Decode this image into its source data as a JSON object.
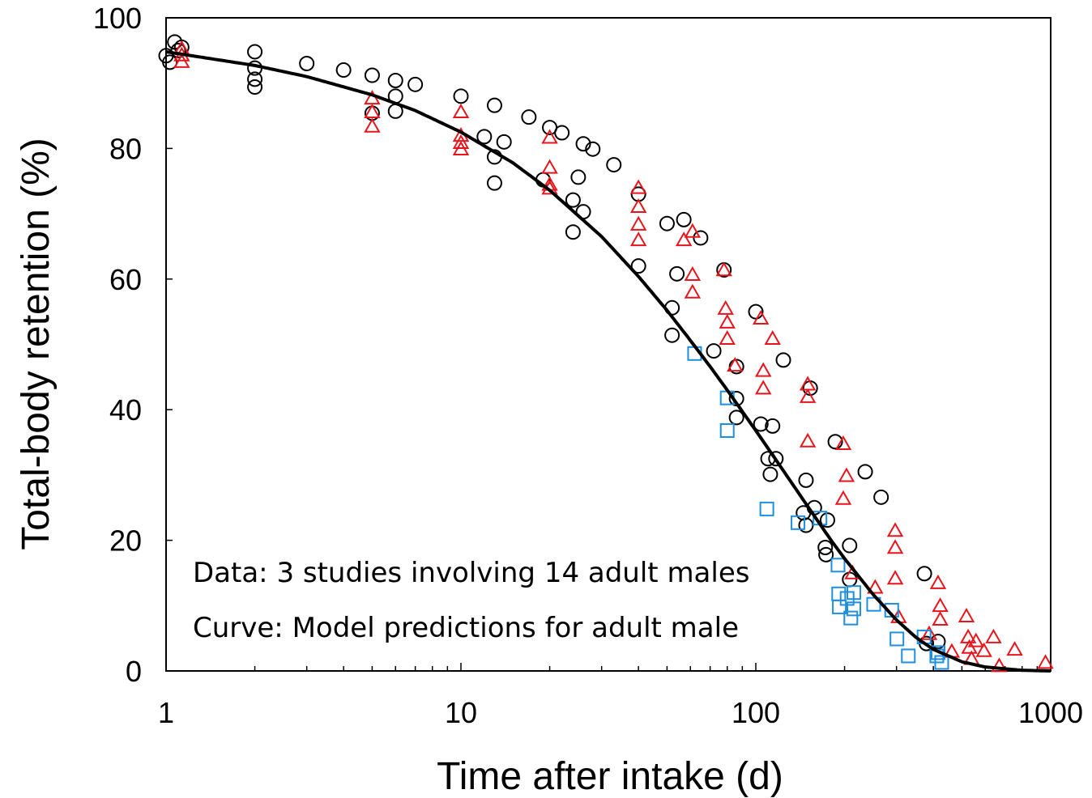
{
  "chart_data": {
    "type": "scatter",
    "xlabel": "Time after intake (d)",
    "ylabel": "Total-body retention (%)",
    "xscale": "log",
    "xlim": [
      1,
      1000
    ],
    "ylim": [
      0,
      100
    ],
    "x_ticks": [
      1,
      10,
      100,
      1000
    ],
    "x_tick_labels": [
      "1",
      "10",
      "100",
      "1000"
    ],
    "y_ticks": [
      0,
      20,
      40,
      60,
      80,
      100
    ],
    "y_tick_labels": [
      "0",
      "20",
      "40",
      "60",
      "80",
      "100"
    ],
    "grid": false,
    "annotations": [
      "Data: 3 studies involving 14 adult males",
      "Curve: Model predictions for adult male"
    ],
    "series": [
      {
        "marker": "circle",
        "color": "#000000",
        "points": [
          [
            1.0,
            94.2
          ],
          [
            1.03,
            93.2
          ],
          [
            1.07,
            96.3
          ],
          [
            1.1,
            95.0
          ],
          [
            1.13,
            95.5
          ],
          [
            2,
            94.8
          ],
          [
            2,
            92.3
          ],
          [
            2,
            90.6
          ],
          [
            2,
            89.4
          ],
          [
            3,
            93.0
          ],
          [
            4,
            92.0
          ],
          [
            5,
            91.2
          ],
          [
            5,
            85.4
          ],
          [
            6,
            90.4
          ],
          [
            6,
            88.0
          ],
          [
            6,
            85.7
          ],
          [
            7,
            89.8
          ],
          [
            10,
            88.0
          ],
          [
            12,
            81.8
          ],
          [
            13,
            86.6
          ],
          [
            13,
            78.7
          ],
          [
            13,
            74.7
          ],
          [
            14,
            81.0
          ],
          [
            17,
            84.8
          ],
          [
            19,
            75.2
          ],
          [
            20,
            83.2
          ],
          [
            22,
            82.4
          ],
          [
            24,
            72.1
          ],
          [
            24,
            67.2
          ],
          [
            25,
            75.6
          ],
          [
            26,
            80.7
          ],
          [
            26,
            70.3
          ],
          [
            28,
            79.9
          ],
          [
            33,
            77.5
          ],
          [
            40,
            73.0
          ],
          [
            40,
            62.0
          ],
          [
            50,
            68.5
          ],
          [
            52,
            55.6
          ],
          [
            52,
            51.4
          ],
          [
            54,
            60.8
          ],
          [
            57,
            69.1
          ],
          [
            65,
            66.3
          ],
          [
            72,
            49.0
          ],
          [
            78,
            61.4
          ],
          [
            86,
            46.6
          ],
          [
            86,
            41.7
          ],
          [
            86,
            38.8
          ],
          [
            100,
            55.0
          ],
          [
            104,
            37.8
          ],
          [
            110,
            32.5
          ],
          [
            112,
            30.1
          ],
          [
            114,
            37.5
          ],
          [
            117,
            32.5
          ],
          [
            124,
            47.6
          ],
          [
            145,
            24.2
          ],
          [
            148,
            29.2
          ],
          [
            148,
            22.3
          ],
          [
            153,
            43.3
          ],
          [
            158,
            25.0
          ],
          [
            172,
            18.9
          ],
          [
            173,
            17.8
          ],
          [
            175,
            23.1
          ],
          [
            186,
            35.1
          ],
          [
            208,
            19.2
          ],
          [
            208,
            14.0
          ],
          [
            235,
            30.5
          ],
          [
            266,
            26.6
          ],
          [
            373,
            14.9
          ],
          [
            379,
            4.2
          ],
          [
            415,
            4.5
          ]
        ]
      },
      {
        "marker": "triangle",
        "color": "#e8141c",
        "points": [
          [
            1.13,
            95.2
          ],
          [
            1.13,
            94.2
          ],
          [
            1.13,
            93.2
          ],
          [
            5,
            87.6
          ],
          [
            5,
            85.5
          ],
          [
            5,
            83.3
          ],
          [
            10,
            85.5
          ],
          [
            10,
            81.9
          ],
          [
            10,
            80.8
          ],
          [
            10,
            79.8
          ],
          [
            20,
            81.6
          ],
          [
            20,
            77.0
          ],
          [
            20,
            74.4
          ],
          [
            20,
            73.8
          ],
          [
            40,
            73.9
          ],
          [
            40,
            71.0
          ],
          [
            40,
            68.3
          ],
          [
            40,
            65.9
          ],
          [
            57,
            65.9
          ],
          [
            61,
            67.2
          ],
          [
            61,
            60.6
          ],
          [
            61,
            57.9
          ],
          [
            78,
            61.3
          ],
          [
            79,
            55.4
          ],
          [
            80,
            53.3
          ],
          [
            80,
            50.8
          ],
          [
            85,
            46.7
          ],
          [
            104,
            53.9
          ],
          [
            106,
            45.9
          ],
          [
            106,
            43.2
          ],
          [
            114,
            50.8
          ],
          [
            150,
            43.8
          ],
          [
            150,
            41.9
          ],
          [
            150,
            35.1
          ],
          [
            198,
            34.7
          ],
          [
            198,
            26.3
          ],
          [
            203,
            29.8
          ],
          [
            213,
            14.9
          ],
          [
            254,
            12.7
          ],
          [
            297,
            21.4
          ],
          [
            297,
            18.8
          ],
          [
            297,
            14.1
          ],
          [
            305,
            8.2
          ],
          [
            387,
            5.6
          ],
          [
            415,
            13.4
          ],
          [
            422,
            9.9
          ],
          [
            422,
            7.8
          ],
          [
            462,
            2.9
          ],
          [
            518,
            8.3
          ],
          [
            525,
            5.1
          ],
          [
            530,
            3.5
          ],
          [
            539,
            1.8
          ],
          [
            558,
            4.5
          ],
          [
            594,
            3.0
          ],
          [
            640,
            5.1
          ],
          [
            669,
            0.7
          ],
          [
            755,
            3.2
          ],
          [
            960,
            1.2
          ]
        ]
      },
      {
        "marker": "square",
        "color": "#1e8fe0",
        "points": [
          [
            62,
            48.6
          ],
          [
            80,
            41.8
          ],
          [
            80,
            36.8
          ],
          [
            109,
            24.8
          ],
          [
            139,
            22.7
          ],
          [
            165,
            23.4
          ],
          [
            190,
            16.2
          ],
          [
            191,
            11.8
          ],
          [
            192,
            9.8
          ],
          [
            204,
            11.1
          ],
          [
            210,
            8.1
          ],
          [
            215,
            12.0
          ],
          [
            215,
            9.5
          ],
          [
            251,
            10.2
          ],
          [
            289,
            9.3
          ],
          [
            301,
            4.9
          ],
          [
            329,
            2.3
          ],
          [
            372,
            5.2
          ],
          [
            411,
            2.3
          ],
          [
            415,
            2.8
          ],
          [
            427,
            1.3
          ]
        ]
      }
    ],
    "model_curve": {
      "color": "#000000",
      "points": [
        [
          1,
          94.8
        ],
        [
          2,
          92.7
        ],
        [
          3,
          91.0
        ],
        [
          5,
          88.2
        ],
        [
          7,
          85.8
        ],
        [
          10,
          82.5
        ],
        [
          15,
          77.8
        ],
        [
          20,
          73.6
        ],
        [
          30,
          66.5
        ],
        [
          40,
          60.4
        ],
        [
          50,
          55.2
        ],
        [
          60,
          50.6
        ],
        [
          70,
          46.6
        ],
        [
          80,
          43.0
        ],
        [
          100,
          36.8
        ],
        [
          120,
          31.6
        ],
        [
          150,
          25.2
        ],
        [
          180,
          20.0
        ],
        [
          200,
          17.2
        ],
        [
          250,
          11.7
        ],
        [
          300,
          7.8
        ],
        [
          350,
          5.1
        ],
        [
          400,
          3.3
        ],
        [
          500,
          1.4
        ],
        [
          600,
          0.6
        ],
        [
          800,
          0.1
        ],
        [
          1000,
          0.0
        ]
      ]
    }
  }
}
